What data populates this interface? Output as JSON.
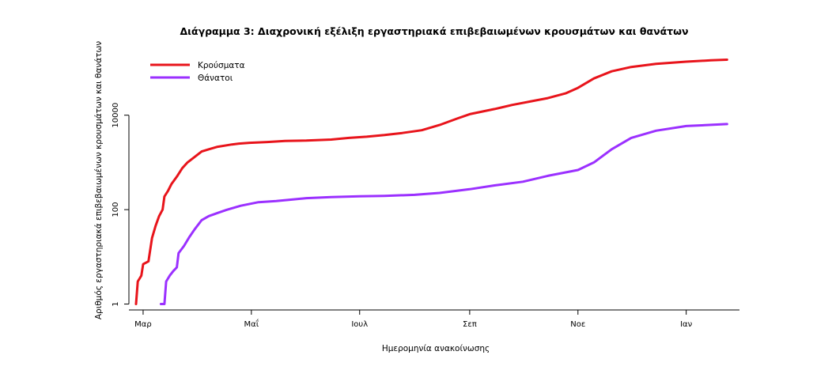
{
  "chart_data": {
    "type": "line",
    "title": "Διάγραμμα 3: Διαχρονική εξέλιξη εργαστηριακά επιβεβαιωμένων κρουσμάτων και θανάτων",
    "xlabel": "Ημερομηνία ανακοίνωσης",
    "ylabel": "Αριθμός εργαστηριακά επιβεβαιωμένων κρουσμάτων και θανάτων",
    "x_ticks": [
      "Mαρ",
      "Mαΐ",
      "Ιουλ",
      "Σεπ",
      "Noε",
      "Ιαν"
    ],
    "x_tick_dates": [
      "2020-03-01",
      "2020-05-01",
      "2020-07-01",
      "2020-09-01",
      "2020-11-01",
      "2021-01-01"
    ],
    "y_scale": "log",
    "y_ticks": [
      1,
      100,
      10000
    ],
    "y_tick_labels": [
      "1",
      "100",
      "10000"
    ],
    "ylim": [
      0.75,
      200000
    ],
    "xlim": [
      "2020-02-22",
      "2021-01-31"
    ],
    "grid": false,
    "legend_position": "top-left",
    "series": [
      {
        "name": "Κρούσματα",
        "color": "#e8141b",
        "points": [
          [
            "2020-02-26",
            1
          ],
          [
            "2020-02-27",
            3
          ],
          [
            "2020-02-29",
            4
          ],
          [
            "2020-03-01",
            7
          ],
          [
            "2020-03-04",
            8
          ],
          [
            "2020-03-06",
            25
          ],
          [
            "2020-03-08",
            45
          ],
          [
            "2020-03-10",
            73
          ],
          [
            "2020-03-12",
            100
          ],
          [
            "2020-03-13",
            190
          ],
          [
            "2020-03-15",
            250
          ],
          [
            "2020-03-17",
            350
          ],
          [
            "2020-03-20",
            500
          ],
          [
            "2020-03-23",
            750
          ],
          [
            "2020-03-26",
            1000
          ],
          [
            "2020-03-30",
            1300
          ],
          [
            "2020-04-03",
            1700
          ],
          [
            "2020-04-07",
            1900
          ],
          [
            "2020-04-12",
            2150
          ],
          [
            "2020-04-17",
            2300
          ],
          [
            "2020-04-20",
            2400
          ],
          [
            "2020-04-24",
            2500
          ],
          [
            "2020-04-30",
            2600
          ],
          [
            "2020-05-10",
            2700
          ],
          [
            "2020-05-20",
            2850
          ],
          [
            "2020-06-01",
            2900
          ],
          [
            "2020-06-15",
            3050
          ],
          [
            "2020-06-25",
            3300
          ],
          [
            "2020-07-05",
            3500
          ],
          [
            "2020-07-15",
            3800
          ],
          [
            "2020-07-25",
            4200
          ],
          [
            "2020-08-05",
            4800
          ],
          [
            "2020-08-15",
            6200
          ],
          [
            "2020-08-25",
            8500
          ],
          [
            "2020-09-01",
            10500
          ],
          [
            "2020-09-15",
            13500
          ],
          [
            "2020-09-25",
            16500
          ],
          [
            "2020-10-05",
            19500
          ],
          [
            "2020-10-15",
            23000
          ],
          [
            "2020-10-25",
            29000
          ],
          [
            "2020-11-01",
            38000
          ],
          [
            "2020-11-10",
            60000
          ],
          [
            "2020-11-20",
            85000
          ],
          [
            "2020-12-01",
            105000
          ],
          [
            "2020-12-15",
            122000
          ],
          [
            "2021-01-01",
            136000
          ],
          [
            "2021-01-15",
            145000
          ],
          [
            "2021-01-24",
            150000
          ]
        ]
      },
      {
        "name": "Θάνατοι",
        "color": "#9b30ff",
        "points": [
          [
            "2020-03-11",
            1
          ],
          [
            "2020-03-13",
            1
          ],
          [
            "2020-03-14",
            3
          ],
          [
            "2020-03-16",
            4
          ],
          [
            "2020-03-18",
            5
          ],
          [
            "2020-03-20",
            6
          ],
          [
            "2020-03-21",
            12
          ],
          [
            "2020-03-24",
            17
          ],
          [
            "2020-03-27",
            26
          ],
          [
            "2020-03-30",
            38
          ],
          [
            "2020-04-03",
            60
          ],
          [
            "2020-04-07",
            73
          ],
          [
            "2020-04-12",
            85
          ],
          [
            "2020-04-17",
            99
          ],
          [
            "2020-04-25",
            121
          ],
          [
            "2020-05-05",
            144
          ],
          [
            "2020-05-15",
            152
          ],
          [
            "2020-06-01",
            175
          ],
          [
            "2020-06-15",
            185
          ],
          [
            "2020-07-01",
            192
          ],
          [
            "2020-07-15",
            196
          ],
          [
            "2020-08-01",
            206
          ],
          [
            "2020-08-15",
            226
          ],
          [
            "2020-09-01",
            271
          ],
          [
            "2020-09-15",
            325
          ],
          [
            "2020-10-01",
            390
          ],
          [
            "2020-10-15",
            520
          ],
          [
            "2020-11-01",
            690
          ],
          [
            "2020-11-10",
            1000
          ],
          [
            "2020-11-20",
            1900
          ],
          [
            "2020-12-01",
            3300
          ],
          [
            "2020-12-15",
            4700
          ],
          [
            "2021-01-01",
            5900
          ],
          [
            "2021-01-24",
            6500
          ]
        ]
      }
    ]
  }
}
